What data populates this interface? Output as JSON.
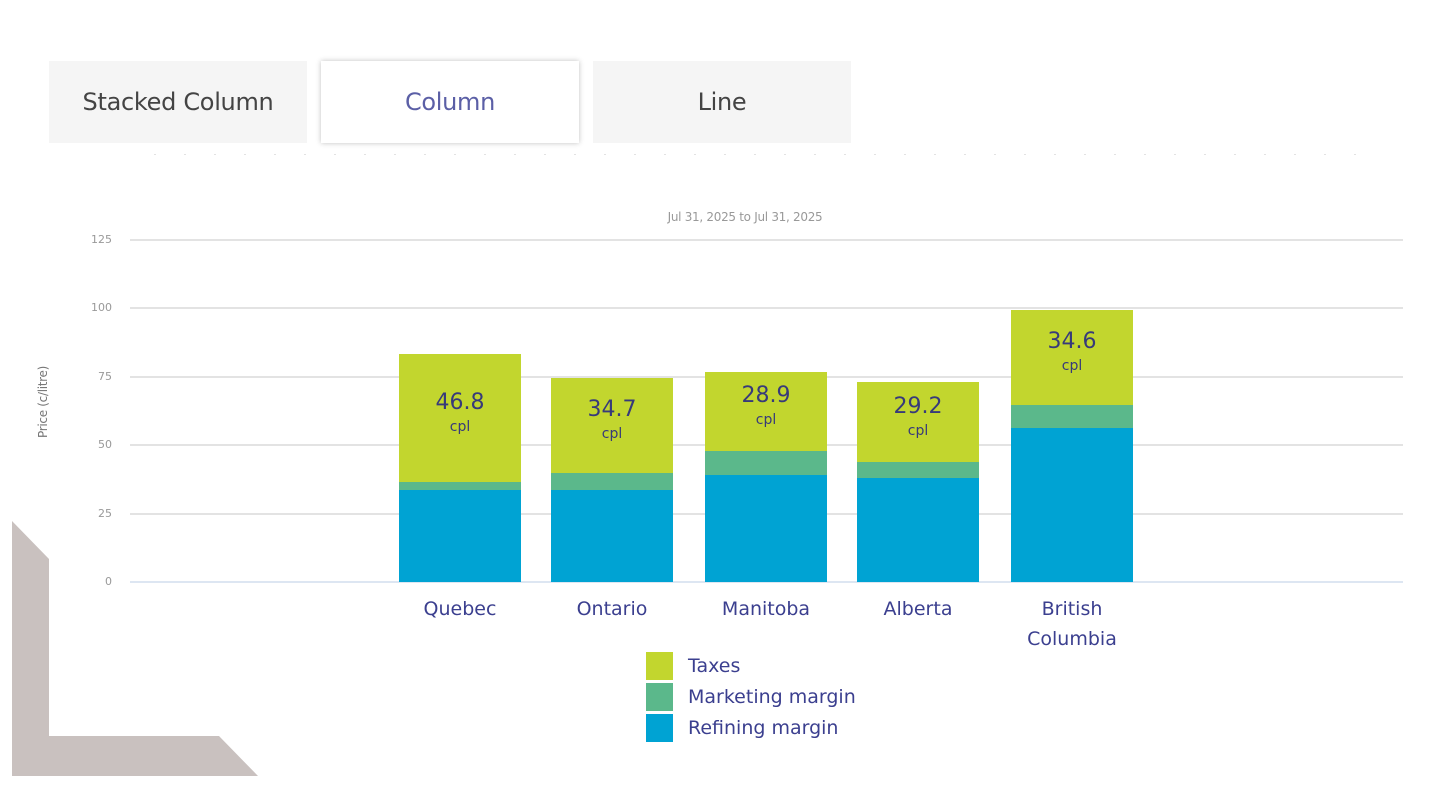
{
  "tabs": [
    {
      "label": "Stacked Column",
      "active": false
    },
    {
      "label": "Column",
      "active": true
    },
    {
      "label": "Line",
      "active": false
    }
  ],
  "colors": {
    "taxes": "#c2d62e",
    "marketing_margin": "#5bb88b",
    "refining_margin": "#00a3d3",
    "label_text": "#3b3f8f",
    "active_tab_text": "#5b5fa6",
    "decoration": "#c9c1bf"
  },
  "chart_data": {
    "type": "bar",
    "stacked": true,
    "title": "",
    "subtitle": "Jul 31, 2025 to Jul 31, 2025",
    "xlabel": "",
    "ylabel": "Price (c/litre)",
    "ylim": [
      0,
      125
    ],
    "yticks": [
      0,
      25,
      50,
      75,
      100,
      125
    ],
    "grid": true,
    "legend_position": "bottom",
    "categories": [
      "Quebec",
      "Ontario",
      "Manitoba",
      "Alberta",
      "British Columbia"
    ],
    "series": [
      {
        "name": "Refining margin",
        "values": [
          33.6,
          33.6,
          39.1,
          38.0,
          56.3
        ]
      },
      {
        "name": "Marketing margin",
        "values": [
          2.9,
          6.3,
          8.8,
          5.9,
          8.5
        ]
      },
      {
        "name": "Taxes",
        "values": [
          46.8,
          34.7,
          28.9,
          29.2,
          34.6
        ]
      }
    ],
    "data_labels": {
      "series": "Taxes",
      "values": [
        "46.8",
        "34.7",
        "28.9",
        "29.2",
        "34.6"
      ],
      "unit": "cpl"
    }
  },
  "legend": [
    {
      "label": "Taxes"
    },
    {
      "label": "Marketing margin"
    },
    {
      "label": "Refining margin"
    }
  ],
  "x_labels": [
    "Quebec",
    "Ontario",
    "Manitoba",
    "Alberta",
    "British Columbia"
  ]
}
